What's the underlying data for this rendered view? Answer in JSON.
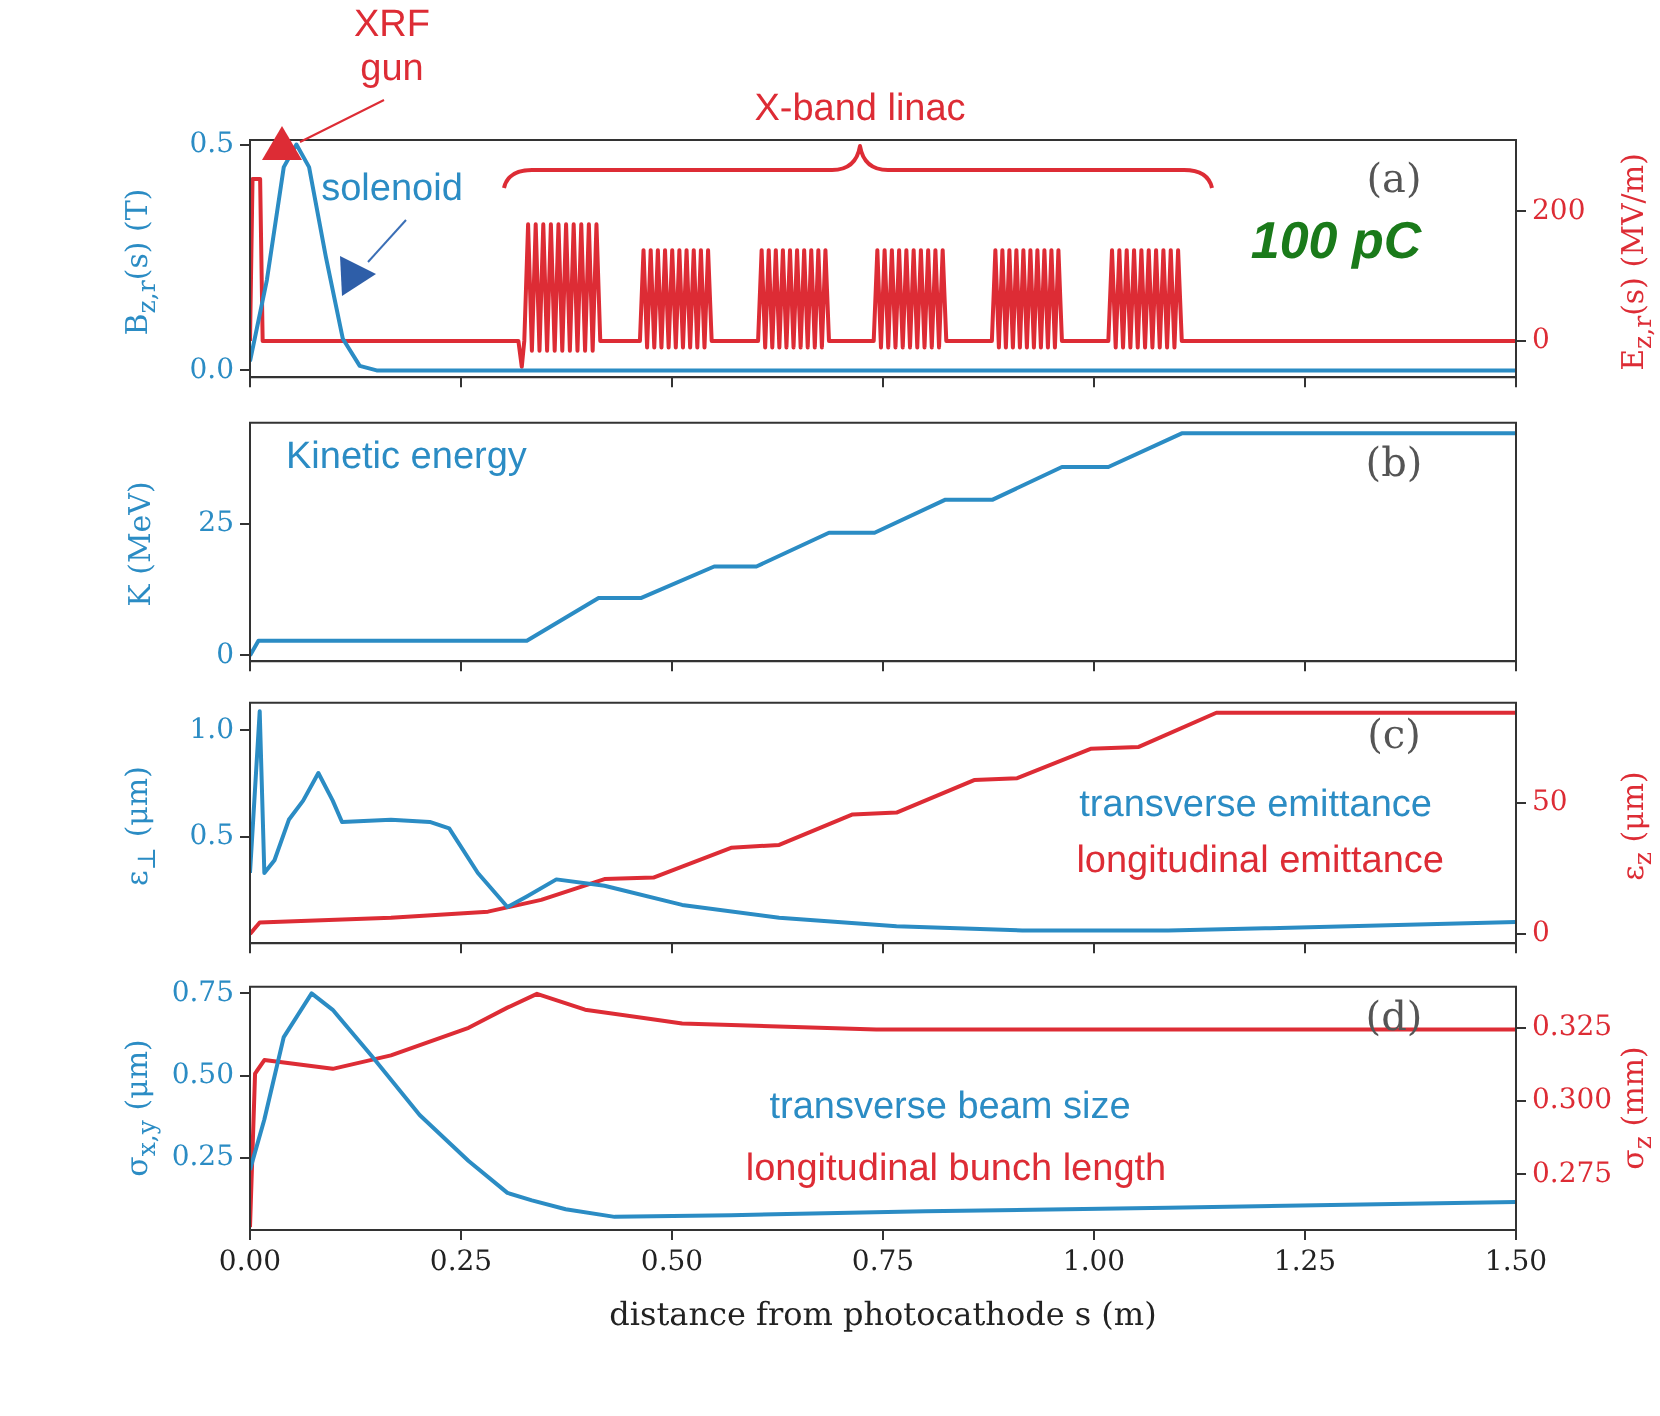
{
  "chart_data": [
    {
      "type": "line",
      "ylabel": "B$_{z,r}$(s) (T)",
      "y2label": "E$_{z,r}$(s) (MV/m)",
      "xlim": [
        0,
        1.5
      ],
      "xticks": [
        0,
        0.25,
        0.5,
        0.75,
        1,
        1.25,
        1.5
      ],
      "ylim": [
        -0.015,
        0.51
      ],
      "yticks": [
        {
          "value": 0,
          "label": "0.0"
        },
        0.5
      ],
      "y2lim": [
        -56,
        310
      ],
      "y2ticks": [
        0,
        200
      ],
      "tick_labels": "y",
      "legend": false,
      "annotations": [
        "XRF gun",
        "X-band linac",
        "(a)",
        "100 pC"
      ],
      "series": [
        {
          "name": "solenoid",
          "color": "#2b8cc4",
          "x": [
            0,
            0.02,
            0.04,
            0.055,
            0.07,
            0.09,
            0.11,
            0.13,
            0.15,
            1.5
          ],
          "values": [
            0.02,
            0.2,
            0.45,
            0.5,
            0.45,
            0.25,
            0.07,
            0.01,
            0,
            0
          ]
        },
        {
          "color": "#dd2c35",
          "axis": "y2",
          "x": [
            0,
            0.003,
            0.012,
            0.015,
            0.318,
            0.322,
            0.325,
            0.3295,
            0.334,
            0.3385,
            0.343,
            0.3475,
            0.352,
            0.3565,
            0.361,
            0.3655,
            0.37,
            0.3745,
            0.379,
            0.3835,
            0.388,
            0.3925,
            0.397,
            0.4015,
            0.406,
            0.4105,
            0.415,
            0.462,
            0.46625,
            0.4705,
            0.47475,
            0.479,
            0.48325,
            0.4875,
            0.49175,
            0.496,
            0.50025,
            0.5045,
            0.50875,
            0.513,
            0.51725,
            0.5215,
            0.52575,
            0.53,
            0.53425,
            0.5385,
            0.54275,
            0.547,
            0.602,
            0.6062,
            0.6104,
            0.6146,
            0.6188,
            0.623,
            0.6272,
            0.6314,
            0.6356,
            0.6398,
            0.644,
            0.6482,
            0.6524,
            0.6566,
            0.6608,
            0.665,
            0.6692,
            0.6734,
            0.6776,
            0.6818,
            0.686,
            0.739,
            0.7433,
            0.7476,
            0.7519,
            0.7562,
            0.7605,
            0.7648,
            0.7691,
            0.7734,
            0.7777,
            0.782,
            0.7863,
            0.7906,
            0.7949,
            0.7992,
            0.8035,
            0.8078,
            0.8121,
            0.8164,
            0.8207,
            0.825,
            0.879,
            0.88315,
            0.8873,
            0.89145,
            0.8956,
            0.89975,
            0.9039,
            0.90805,
            0.9122,
            0.91635,
            0.9205,
            0.92465,
            0.9288,
            0.93295,
            0.9371,
            0.94125,
            0.9454,
            0.94955,
            0.9537,
            0.95785,
            0.962,
            1.017,
            1.02135,
            1.0257,
            1.03005,
            1.0344,
            1.03875,
            1.0431,
            1.04745,
            1.0518,
            1.05615,
            1.0605,
            1.06485,
            1.0692,
            1.07355,
            1.0779,
            1.08225,
            1.0866,
            1.09095,
            1.0953,
            1.09965,
            1.104,
            1.5
          ],
          "values": [
            0,
            250,
            250,
            0,
            0,
            -40,
            0,
            180,
            -15,
            180,
            -15,
            180,
            -15,
            180,
            -15,
            180,
            -15,
            180,
            -15,
            180,
            -15,
            180,
            -15,
            180,
            -15,
            180,
            0,
            0,
            140,
            -10,
            140,
            -10,
            140,
            -10,
            140,
            -10,
            140,
            -10,
            140,
            -10,
            140,
            -10,
            140,
            -10,
            140,
            -10,
            140,
            0,
            0,
            140,
            -10,
            140,
            -10,
            140,
            -10,
            140,
            -10,
            140,
            -10,
            140,
            -10,
            140,
            -10,
            140,
            -10,
            140,
            -10,
            140,
            0,
            0,
            140,
            -10,
            140,
            -10,
            140,
            -10,
            140,
            -10,
            140,
            -10,
            140,
            -10,
            140,
            -10,
            140,
            -10,
            140,
            -10,
            140,
            0,
            0,
            140,
            -10,
            140,
            -10,
            140,
            -10,
            140,
            -10,
            140,
            -10,
            140,
            -10,
            140,
            -10,
            140,
            -10,
            140,
            -10,
            140,
            0,
            0,
            140,
            -10,
            140,
            -10,
            140,
            -10,
            140,
            -10,
            140,
            -10,
            140,
            -10,
            140,
            -10,
            140,
            -10,
            140,
            -10,
            140,
            0,
            0
          ]
        }
      ]
    },
    {
      "type": "line",
      "ylabel": "K (MeV)",
      "xlim": [
        0,
        1.5
      ],
      "xticks": [
        0,
        0.25,
        0.5,
        0.75,
        1,
        1.25,
        1.5
      ],
      "ylim": [
        -1.1,
        44.2
      ],
      "yticks": [
        0,
        25
      ],
      "tick_labels": "y",
      "legend": false,
      "annotations": [
        "(b)"
      ],
      "series": [
        {
          "name": "Kinetic energy",
          "color": "#2b8cc4",
          "x": [
            0,
            0.01,
            0.328,
            0.413,
            0.463,
            0.55,
            0.6,
            0.686,
            0.74,
            0.824,
            0.88,
            0.962,
            1.017,
            1.104,
            1.5
          ],
          "values": [
            0,
            2.8,
            2.8,
            10.9,
            10.9,
            16.9,
            16.9,
            23.3,
            23.3,
            29.6,
            29.6,
            35.8,
            35.8,
            42.2,
            42.2
          ]
        }
      ]
    },
    {
      "type": "line",
      "ylabel": "ε$_{⊥}$ (μm)",
      "y2label": "ε$_{z}$ (μm)",
      "xlim": [
        0,
        1.5
      ],
      "xticks": [
        0,
        0.25,
        0.5,
        0.75,
        1,
        1.25,
        1.5
      ],
      "ylim": [
        0,
        1.13
      ],
      "yticks": [
        0.5,
        {
          "value": 1,
          "label": "1.0"
        }
      ],
      "y2lim": [
        -3.5,
        88
      ],
      "y2ticks": [
        0,
        50
      ],
      "tick_labels": "y",
      "legend": false,
      "annotations": [
        "(c)"
      ],
      "series": [
        {
          "name": "transverse emittance",
          "color": "#2b8cc4",
          "x": [
            0,
            0.0115,
            0.017,
            0.029,
            0.046,
            0.063,
            0.081,
            0.098,
            0.109,
            0.167,
            0.213,
            0.236,
            0.27,
            0.305,
            0.328,
            0.363,
            0.42,
            0.512,
            0.627,
            0.766,
            0.915,
            1.088,
            1.203,
            1.5
          ],
          "values": [
            0.33,
            1.09,
            0.33,
            0.39,
            0.58,
            0.67,
            0.8,
            0.67,
            0.57,
            0.58,
            0.57,
            0.54,
            0.33,
            0.17,
            0.22,
            0.3,
            0.27,
            0.18,
            0.12,
            0.08,
            0.06,
            0.06,
            0.07,
            0.1
          ]
        },
        {
          "name": "longitudinal emittance",
          "color": "#dd2c35",
          "axis": "y2",
          "x": [
            0,
            0.0115,
            0.167,
            0.282,
            0.345,
            0.42,
            0.478,
            0.57,
            0.627,
            0.714,
            0.766,
            0.858,
            0.909,
            0.996,
            1.053,
            1.145,
            1.5
          ],
          "values": [
            0,
            4.4,
            6.2,
            8.5,
            13,
            20.9,
            21.5,
            32.8,
            33.9,
            45.5,
            46.2,
            58.6,
            59.3,
            70.5,
            71.2,
            84.2,
            84.2
          ]
        }
      ]
    },
    {
      "type": "line",
      "xlabel": "distance from photocathode s (m)",
      "ylabel": "σ$_{x,y}$ (μm)",
      "y2label": "σ$_{z}$ (mm)",
      "xlim": [
        0,
        1.5
      ],
      "xticks": [
        {
          "value": 0,
          "label": "0.00"
        },
        {
          "value": 0.25,
          "label": "0.25"
        },
        {
          "value": 0.5,
          "label": "0.50"
        },
        {
          "value": 0.75,
          "label": "0.75"
        },
        {
          "value": 1,
          "label": "1.00"
        },
        {
          "value": 1.25,
          "label": "1.25"
        },
        {
          "value": 1.5,
          "label": "1.50"
        }
      ],
      "ylim": [
        0.03,
        0.77
      ],
      "yticks": [
        0.25,
        {
          "value": 0.5,
          "label": "0.50"
        },
        0.75
      ],
      "y2lim": [
        0.256,
        0.339
      ],
      "y2ticks": [
        0.275,
        {
          "value": 0.3,
          "label": "0.300"
        },
        0.325
      ],
      "legend": false,
      "annotations": [
        "(d)"
      ],
      "series": [
        {
          "name": "transverse beam size",
          "color": "#2b8cc4",
          "x": [
            0,
            0.017,
            0.04,
            0.073,
            0.098,
            0.144,
            0.201,
            0.259,
            0.305,
            0.334,
            0.374,
            0.432,
            0.57,
            0.8,
            1.088,
            1.5
          ],
          "values": [
            0.213,
            0.366,
            0.617,
            0.75,
            0.7,
            0.56,
            0.38,
            0.24,
            0.143,
            0.12,
            0.093,
            0.07,
            0.075,
            0.087,
            0.098,
            0.115
          ]
        },
        {
          "name": "longitudinal bunch length",
          "color": "#dd2c35",
          "axis": "y2",
          "x": [
            0,
            0.006,
            0.017,
            0.098,
            0.167,
            0.259,
            0.305,
            0.34,
            0.397,
            0.512,
            0.742,
            1.5
          ],
          "values": [
            0.257,
            0.3094,
            0.314,
            0.311,
            0.3156,
            0.325,
            0.3319,
            0.3366,
            0.3312,
            0.3265,
            0.3244,
            0.3244
          ]
        }
      ]
    }
  ]
}
